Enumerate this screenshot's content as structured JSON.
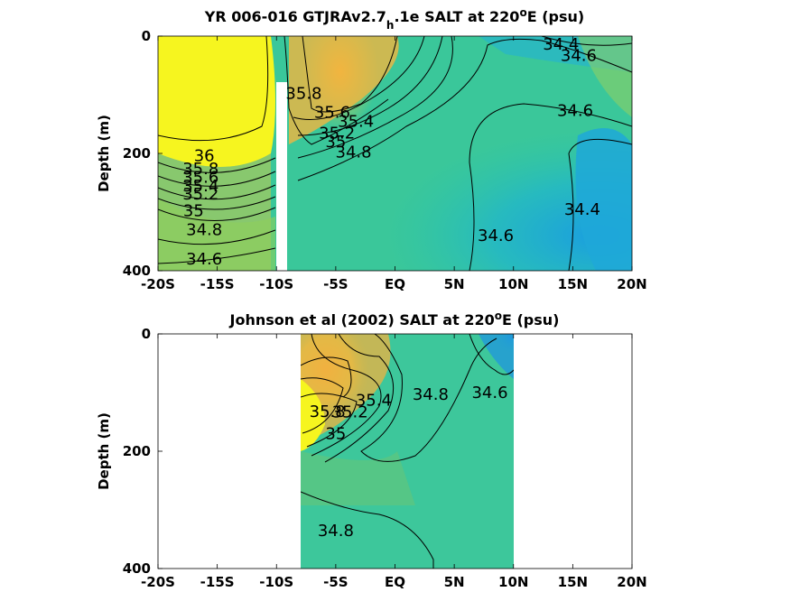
{
  "chart_data": [
    {
      "type": "heatmap",
      "title_main": "YR 006-016 GTJRAv2.7",
      "title_sub": "h",
      "title_rest": ".1e SALT at 220",
      "title_sup": "o",
      "title_end": "E (psu)",
      "ylabel": "Depth (m)",
      "xlim": [
        -20,
        20
      ],
      "ylim": [
        0,
        400
      ],
      "x_ticks": [
        -20,
        -15,
        -10,
        -5,
        0,
        5,
        10,
        15,
        20
      ],
      "x_tick_labels": [
        "-20S",
        "-15S",
        "-10S",
        "-5S",
        "EQ",
        "5N",
        "10N",
        "15N",
        "20N"
      ],
      "y_ticks": [
        0,
        200,
        400
      ],
      "y_tick_labels": [
        "0",
        "200",
        "400"
      ],
      "contour_labels": [
        {
          "text": "36",
          "x": -16.1,
          "y": 204
        },
        {
          "text": "35.8",
          "x": -16.4,
          "y": 226
        },
        {
          "text": "35.6",
          "x": -16.4,
          "y": 241
        },
        {
          "text": "35.4",
          "x": -16.4,
          "y": 255
        },
        {
          "text": "35.2",
          "x": -16.4,
          "y": 269
        },
        {
          "text": "35",
          "x": -17.0,
          "y": 298
        },
        {
          "text": "34.8",
          "x": -16.1,
          "y": 330
        },
        {
          "text": "34.6",
          "x": -16.1,
          "y": 380
        },
        {
          "text": "35.8",
          "x": -7.7,
          "y": 98
        },
        {
          "text": "35.6",
          "x": -5.3,
          "y": 130
        },
        {
          "text": "35.4",
          "x": -3.3,
          "y": 145
        },
        {
          "text": "35.2",
          "x": -4.9,
          "y": 165
        },
        {
          "text": "35",
          "x": -5.0,
          "y": 180
        },
        {
          "text": "34.8",
          "x": -3.5,
          "y": 198
        },
        {
          "text": "34.4",
          "x": 14.0,
          "y": 14
        },
        {
          "text": "34.6",
          "x": 15.5,
          "y": 33
        },
        {
          "text": "34.6",
          "x": 15.2,
          "y": 127
        },
        {
          "text": "34.4",
          "x": 15.8,
          "y": 295
        },
        {
          "text": "34.6",
          "x": 8.5,
          "y": 340
        }
      ]
    },
    {
      "type": "heatmap",
      "title_main": "Johnson et al (2002) SALT at 220",
      "title_sup": "o",
      "title_end": "E (psu)",
      "ylabel": "Depth (m)",
      "xlim": [
        -20,
        20
      ],
      "ylim": [
        0,
        400
      ],
      "x_ticks": [
        -20,
        -15,
        -10,
        -5,
        0,
        5,
        10,
        15,
        20
      ],
      "x_tick_labels": [
        "-20S",
        "-15S",
        "-10S",
        "-5S",
        "EQ",
        "5N",
        "10N",
        "15N",
        "20N"
      ],
      "y_ticks": [
        0,
        200,
        400
      ],
      "y_tick_labels": [
        "0",
        "200",
        "400"
      ],
      "data_x_range": [
        -8,
        10
      ],
      "contour_labels": [
        {
          "text": "35.4",
          "x": -1.8,
          "y": 113
        },
        {
          "text": "35.2",
          "x": -3.8,
          "y": 133
        },
        {
          "text": "35.8",
          "x": -5.7,
          "y": 132
        },
        {
          "text": "35",
          "x": -5.0,
          "y": 170
        },
        {
          "text": "34.8",
          "x": 3.0,
          "y": 103
        },
        {
          "text": "34.6",
          "x": 8.0,
          "y": 100
        },
        {
          "text": "34.8",
          "x": -5.0,
          "y": 335
        }
      ]
    }
  ]
}
